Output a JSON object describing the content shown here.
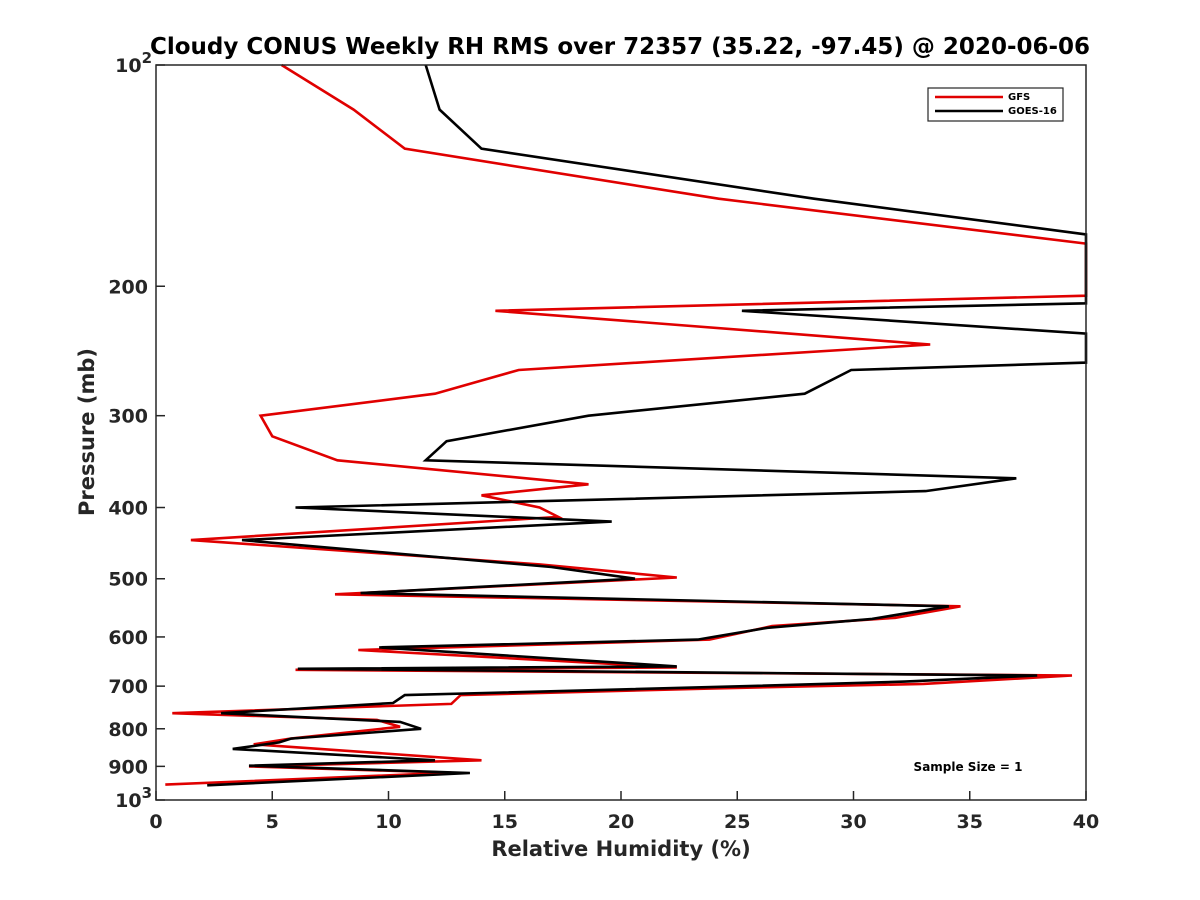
{
  "chart_data": {
    "type": "line",
    "title": "Cloudy CONUS Weekly RH RMS over 72357 (35.22, -97.45) @ 2020-06-06",
    "xlabel": "Relative Humidity (%)",
    "ylabel": "Pressure (mb)",
    "xlim": [
      0,
      40
    ],
    "ylim": [
      100,
      1000
    ],
    "y_scale": "log",
    "y_reversed": true,
    "grid": false,
    "legend_position": "top-right",
    "x_ticks": [
      0,
      5,
      10,
      15,
      20,
      25,
      30,
      35,
      40
    ],
    "y_ticks": [
      {
        "value": 100,
        "base": "10",
        "exp": "2"
      },
      {
        "value": 200,
        "label": "200"
      },
      {
        "value": 300,
        "label": "300"
      },
      {
        "value": 400,
        "label": "400"
      },
      {
        "value": 500,
        "label": "500"
      },
      {
        "value": 600,
        "label": "600"
      },
      {
        "value": 700,
        "label": "700"
      },
      {
        "value": 800,
        "label": "800"
      },
      {
        "value": 900,
        "label": "900"
      },
      {
        "value": 1000,
        "base": "10",
        "exp": "3"
      }
    ],
    "annotation": "Sample Size = 1",
    "series": [
      {
        "name": "GFS",
        "color": "#e00000",
        "points": [
          [
            5.4,
            100
          ],
          [
            8.5,
            115
          ],
          [
            10.7,
            130
          ],
          [
            24.2,
            152
          ],
          [
            40,
            175
          ],
          [
            40,
            206
          ],
          [
            14.6,
            216
          ],
          [
            33.3,
            240
          ],
          [
            15.6,
            260
          ],
          [
            12.0,
            280
          ],
          [
            4.5,
            300
          ],
          [
            5.0,
            320
          ],
          [
            7.8,
            345
          ],
          [
            18.6,
            372
          ],
          [
            14.0,
            385
          ],
          [
            16.5,
            400
          ],
          [
            17.3,
            412
          ],
          [
            1.5,
            443
          ],
          [
            16.5,
            478
          ],
          [
            22.4,
            498
          ],
          [
            7.7,
            525
          ],
          [
            34.6,
            545
          ],
          [
            31.8,
            565
          ],
          [
            26.5,
            580
          ],
          [
            23.8,
            605
          ],
          [
            8.7,
            625
          ],
          [
            22.4,
            660
          ],
          [
            6.0,
            665
          ],
          [
            39.4,
            677
          ],
          [
            33.0,
            695
          ],
          [
            24.0,
            705
          ],
          [
            13.1,
            720
          ],
          [
            12.7,
            740
          ],
          [
            0.7,
            762
          ],
          [
            9.5,
            778
          ],
          [
            10.5,
            795
          ],
          [
            5.8,
            825
          ],
          [
            4.2,
            840
          ],
          [
            14.0,
            883
          ],
          [
            4.0,
            900
          ],
          [
            12.7,
            918
          ],
          [
            0.4,
            953
          ]
        ]
      },
      {
        "name": "GOES-16",
        "color": "#000000",
        "points": [
          [
            11.6,
            100
          ],
          [
            12.2,
            115
          ],
          [
            14.0,
            130
          ],
          [
            28.3,
            152
          ],
          [
            40,
            170
          ],
          [
            40,
            211
          ],
          [
            25.2,
            216
          ],
          [
            40,
            232
          ],
          [
            40,
            254
          ],
          [
            29.9,
            260
          ],
          [
            27.9,
            280
          ],
          [
            18.6,
            300
          ],
          [
            12.5,
            325
          ],
          [
            11.6,
            345
          ],
          [
            37.0,
            365
          ],
          [
            33.1,
            380
          ],
          [
            6.0,
            400
          ],
          [
            19.6,
            418
          ],
          [
            3.7,
            443
          ],
          [
            17.0,
            482
          ],
          [
            20.6,
            500
          ],
          [
            8.8,
            523
          ],
          [
            34.1,
            545
          ],
          [
            30.8,
            567
          ],
          [
            26.3,
            583
          ],
          [
            23.3,
            605
          ],
          [
            9.6,
            620
          ],
          [
            22.4,
            658
          ],
          [
            6.1,
            663
          ],
          [
            37.9,
            677
          ],
          [
            32.2,
            690
          ],
          [
            25.5,
            700
          ],
          [
            10.7,
            720
          ],
          [
            10.2,
            738
          ],
          [
            2.8,
            762
          ],
          [
            10.5,
            783
          ],
          [
            11.4,
            800
          ],
          [
            5.8,
            825
          ],
          [
            5.3,
            835
          ],
          [
            3.3,
            852
          ],
          [
            12.0,
            883
          ],
          [
            4.0,
            898
          ],
          [
            13.5,
            919
          ],
          [
            2.2,
            955
          ]
        ]
      }
    ]
  }
}
